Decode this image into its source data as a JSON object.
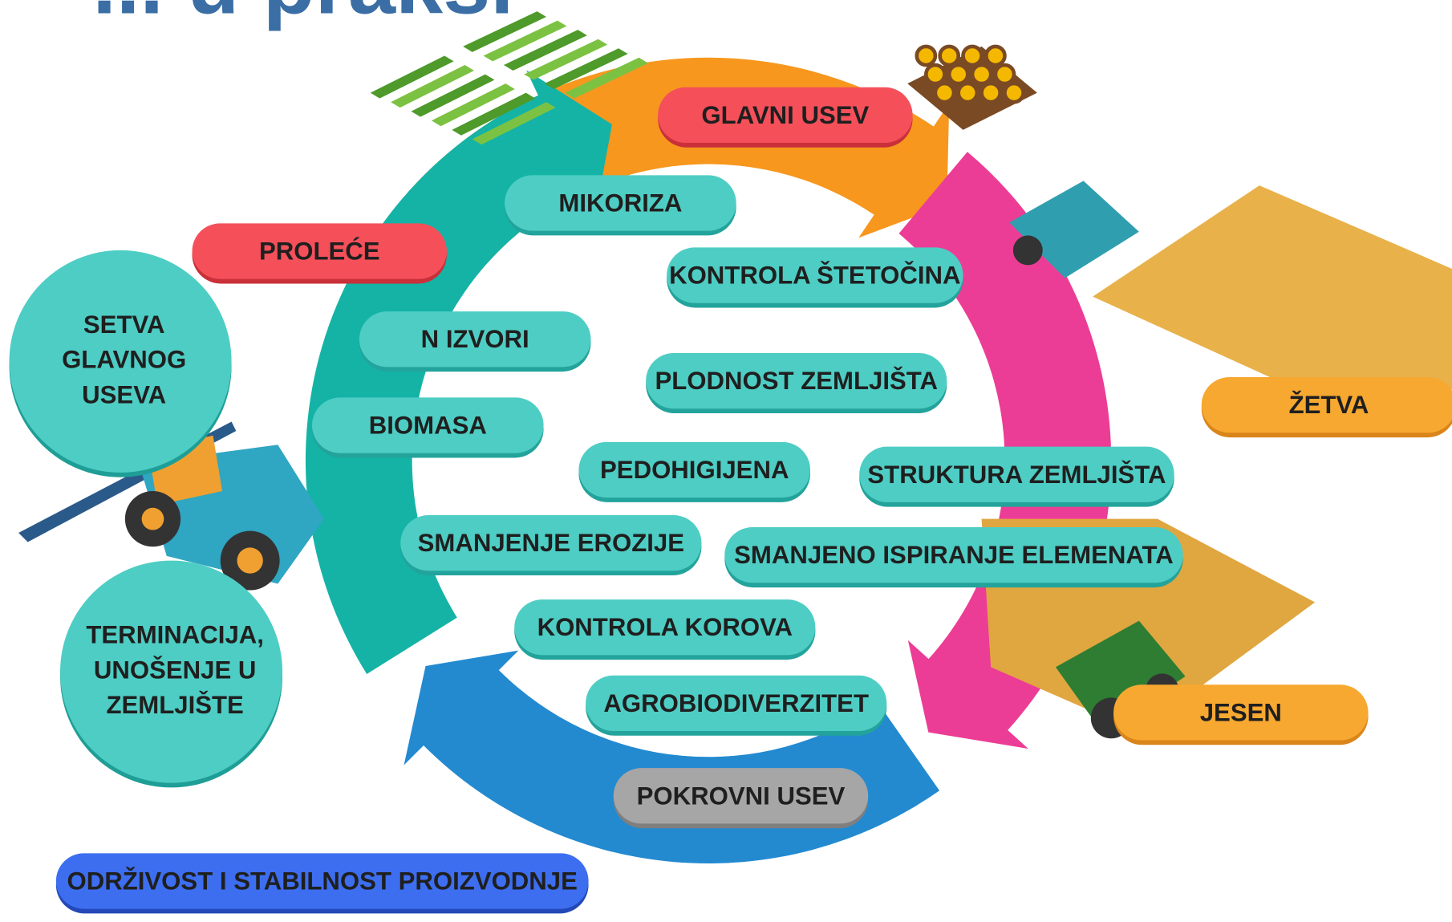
{
  "title": "... u praksi",
  "seasons": {
    "main_crop": "GLAVNI USEV",
    "spring": "PROLEĆE",
    "harvest": "ŽETVA",
    "autumn": "JESEN",
    "cover_crop": "POKROVNI USEV"
  },
  "stages": [
    {
      "lines": [
        "SETVA",
        "GLAVNOG",
        "USEVA"
      ]
    },
    {
      "lines": [
        "TERMINACIJA,",
        "UNOŠENJE U",
        "ZEMLJIŠTE"
      ]
    }
  ],
  "benefits": [
    "MIKORIZA",
    "KONTROLA ŠTETOČINA",
    "N IZVORI",
    "PLODNOST ZEMLJIŠTA",
    "BIOMASA",
    "PEDOHIGIJENA",
    "STRUKTURA ZEMLJIŠTA",
    "SMANJENJE EROZIJE",
    "SMANJENO ISPIRANJE ELEMENATA",
    "KONTROLA KOROVA",
    "AGROBIODIVERZITET"
  ],
  "footer": "ODRŽIVOST I STABILNOST PROIZVODNJE"
}
